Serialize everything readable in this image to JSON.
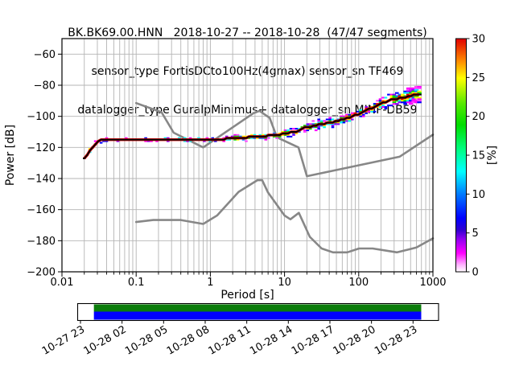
{
  "chart_data": {
    "type": "heatmap",
    "subtype": "ppsd-probabilistic-power-spectral-density",
    "title": "BK.BK69.00.HNN   2018-10-27 -- 2018-10-28  (47/47 segments)",
    "subtitle1": "sensor_type FortisDCto100Hz(4gmax) sensor_sn TF469",
    "subtitle2": "datalogger_type GuralpMinimus+ datalogger_sn MINP-DB59",
    "xlabel": "Period [s]",
    "ylabel": "Power [dB]",
    "xscale": "log",
    "xlim": [
      0.01,
      1000
    ],
    "ylim": [
      -200,
      -50
    ],
    "x_tick_values": [
      0.01,
      0.1,
      1,
      10,
      100,
      1000
    ],
    "x_tick_labels": [
      "0.01",
      "0.1",
      "1",
      "10",
      "100",
      "1000"
    ],
    "y_tick_values": [
      -60,
      -80,
      -100,
      -120,
      -140,
      -160,
      -180,
      -200
    ],
    "y_tick_labels": [
      "−60",
      "−80",
      "−100",
      "−120",
      "−140",
      "−160",
      "−180",
      "−200"
    ],
    "grid": true,
    "grid_color": "#b4b4b4",
    "frame_color": "#000000",
    "colorbar": {
      "label": "[%]",
      "range": [
        0,
        30
      ],
      "tick_values": [
        0,
        5,
        10,
        15,
        20,
        25,
        30
      ],
      "tick_labels": [
        "0",
        "5",
        "10",
        "15",
        "20",
        "25",
        "30"
      ],
      "gradient_stops": [
        [
          0.0,
          "#ffffff"
        ],
        [
          0.03,
          "#ffb3ff"
        ],
        [
          0.08,
          "#ff00ff"
        ],
        [
          0.14,
          "#9000f0"
        ],
        [
          0.18,
          "#3000d0"
        ],
        [
          0.23,
          "#0000ff"
        ],
        [
          0.33,
          "#0077ff"
        ],
        [
          0.43,
          "#00ffff"
        ],
        [
          0.52,
          "#00ff88"
        ],
        [
          0.63,
          "#00dd00"
        ],
        [
          0.72,
          "#55e800"
        ],
        [
          0.83,
          "#ffff00"
        ],
        [
          0.9,
          "#ff9000"
        ],
        [
          1.0,
          "#e00000"
        ]
      ]
    },
    "series": [
      {
        "name": "noise-model-high-NHNM",
        "color": "#878787",
        "width": 2.6,
        "points": [
          [
            0.1,
            -91.5
          ],
          [
            0.22,
            -97.4
          ],
          [
            0.32,
            -110.5
          ],
          [
            0.8,
            -120
          ],
          [
            3.8,
            -98
          ],
          [
            4.6,
            -96.5
          ],
          [
            6.3,
            -101
          ],
          [
            7.9,
            -113.5
          ],
          [
            15.4,
            -120
          ],
          [
            20,
            -138.5
          ],
          [
            354.8,
            -126
          ],
          [
            1000,
            -111.8
          ]
        ]
      },
      {
        "name": "noise-model-low-NLNM",
        "color": "#878787",
        "width": 2.6,
        "points": [
          [
            0.1,
            -168
          ],
          [
            0.17,
            -166.7
          ],
          [
            0.4,
            -166.7
          ],
          [
            0.8,
            -169.2
          ],
          [
            1.24,
            -163.7
          ],
          [
            2.4,
            -148.6
          ],
          [
            4.3,
            -141.1
          ],
          [
            5,
            -141.1
          ],
          [
            6,
            -149
          ],
          [
            10,
            -163.8
          ],
          [
            12,
            -166.2
          ],
          [
            15.6,
            -162.1
          ],
          [
            21.9,
            -177.5
          ],
          [
            31.6,
            -185
          ],
          [
            45,
            -187.5
          ],
          [
            70,
            -187.5
          ],
          [
            101,
            -185
          ],
          [
            154,
            -185
          ],
          [
            328,
            -187.5
          ],
          [
            600,
            -184.4
          ],
          [
            1000,
            -178.5
          ]
        ]
      },
      {
        "name": "ppsd-mode",
        "color": "#000000",
        "width": 1.9,
        "underline_color": "#d40000",
        "points": [
          [
            0.02,
            -127
          ],
          [
            0.023,
            -123
          ],
          [
            0.026,
            -119.5
          ],
          [
            0.03,
            -116.5
          ],
          [
            0.034,
            -115.3
          ],
          [
            1,
            -115.3
          ],
          [
            2,
            -114.2
          ],
          [
            3,
            -113.6
          ],
          [
            5,
            -112.8
          ],
          [
            7,
            -112.2
          ],
          [
            10,
            -111.3
          ],
          [
            14,
            -109.8
          ],
          [
            20,
            -107
          ],
          [
            30,
            -105.3
          ],
          [
            50,
            -103.4
          ],
          [
            70,
            -101.3
          ],
          [
            100,
            -98.4
          ],
          [
            140,
            -95.3
          ],
          [
            200,
            -91.3
          ],
          [
            250,
            -90.3
          ],
          [
            300,
            -88.8
          ],
          [
            400,
            -88
          ],
          [
            500,
            -86.6
          ],
          [
            700,
            -85.9
          ]
        ]
      }
    ],
    "histogram": {
      "period_range": [
        0.02,
        700
      ],
      "bin_step_octaves": 0.125,
      "db_bin_height": 1,
      "seed": 20181027,
      "spread_db_by_period": [
        [
          0.035,
          1.4
        ],
        [
          2,
          0.9
        ],
        [
          10,
          1.6
        ],
        [
          60,
          2.2
        ],
        [
          200,
          2.8
        ],
        [
          450,
          3.4
        ],
        [
          701,
          4.3
        ]
      ],
      "palette": {
        "core": [
          "#cc0000",
          "#ff8800",
          "#cc0000",
          "#000000"
        ],
        "inner": [
          "#ffff00",
          "#00dd00",
          "#ff8800",
          "#e00000"
        ],
        "mid": [
          "#00dd00",
          "#00ffff",
          "#0077ff",
          "#ffff00"
        ],
        "outer": [
          "#0000ff",
          "#ff00ff",
          "#00ffff",
          "#8800ff"
        ],
        "edge": [
          "#ff00ff",
          "#ff00ff",
          "#0000ff",
          "#ff44ff"
        ]
      }
    }
  },
  "timeline": {
    "tick_labels": [
      "10-27 23",
      "10-28 02",
      "10-28 05",
      "10-28 08",
      "10-28 11",
      "10-28 14",
      "10-28 17",
      "10-28 20",
      "10-28 23"
    ],
    "coverage_color_top": "#0b7d0b",
    "coverage_color_bottom": "#0000ff",
    "fill_start_frac": 0.045,
    "fill_end_frac": 0.952
  }
}
